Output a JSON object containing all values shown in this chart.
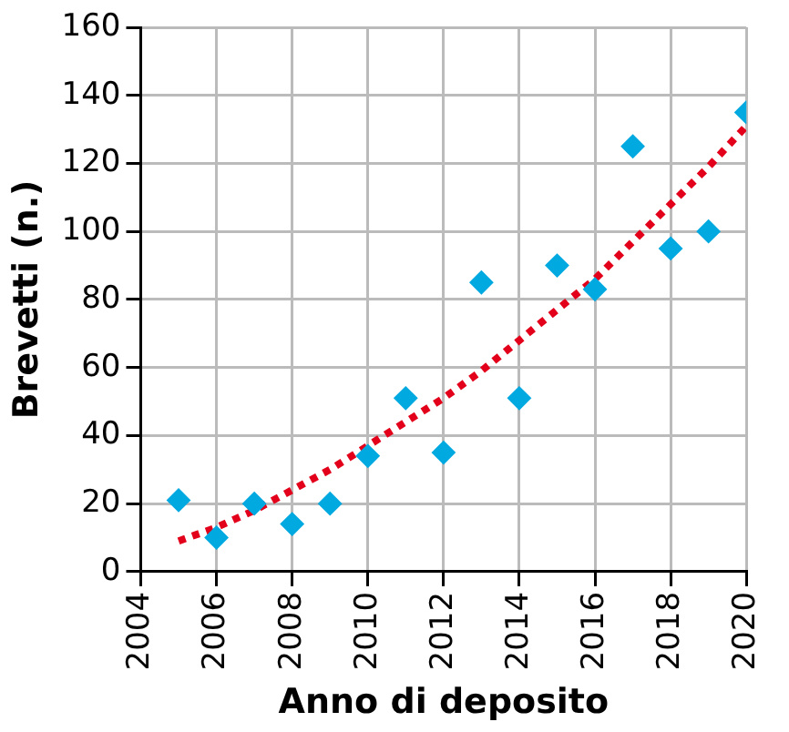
{
  "chart_data": {
    "type": "scatter",
    "xlabel": "Anno di deposito",
    "ylabel": "Brevetti (n.)",
    "xlim": [
      2004,
      2020
    ],
    "xticks": [
      2004,
      2006,
      2008,
      2010,
      2012,
      2014,
      2016,
      2018,
      2020
    ],
    "ylim": [
      0,
      160
    ],
    "yticks": [
      0,
      20,
      40,
      60,
      80,
      100,
      120,
      140,
      160
    ],
    "grid": true,
    "legend": false,
    "series": [
      {
        "type": "scatter",
        "marker": "diamond",
        "color": "#00a9e0",
        "x": [
          2005,
          2006,
          2007,
          2008,
          2009,
          2010,
          2011,
          2012,
          2013,
          2014,
          2015,
          2016,
          2017,
          2018,
          2019,
          2020
        ],
        "values": [
          21,
          10,
          20,
          14,
          20,
          34,
          51,
          35,
          85,
          51,
          90,
          83,
          125,
          95,
          100,
          135
        ]
      },
      {
        "type": "line",
        "marker": "none",
        "color": "#e3001b",
        "line_style": "dotted",
        "x": [
          2005,
          2006,
          2007,
          2008,
          2009,
          2010,
          2011,
          2012,
          2013,
          2014,
          2015,
          2016,
          2017,
          2018,
          2019,
          2020
        ],
        "values": [
          9,
          13,
          18,
          24,
          30,
          37,
          44,
          51,
          59,
          68,
          77,
          86,
          97,
          108,
          119,
          131
        ]
      }
    ]
  }
}
